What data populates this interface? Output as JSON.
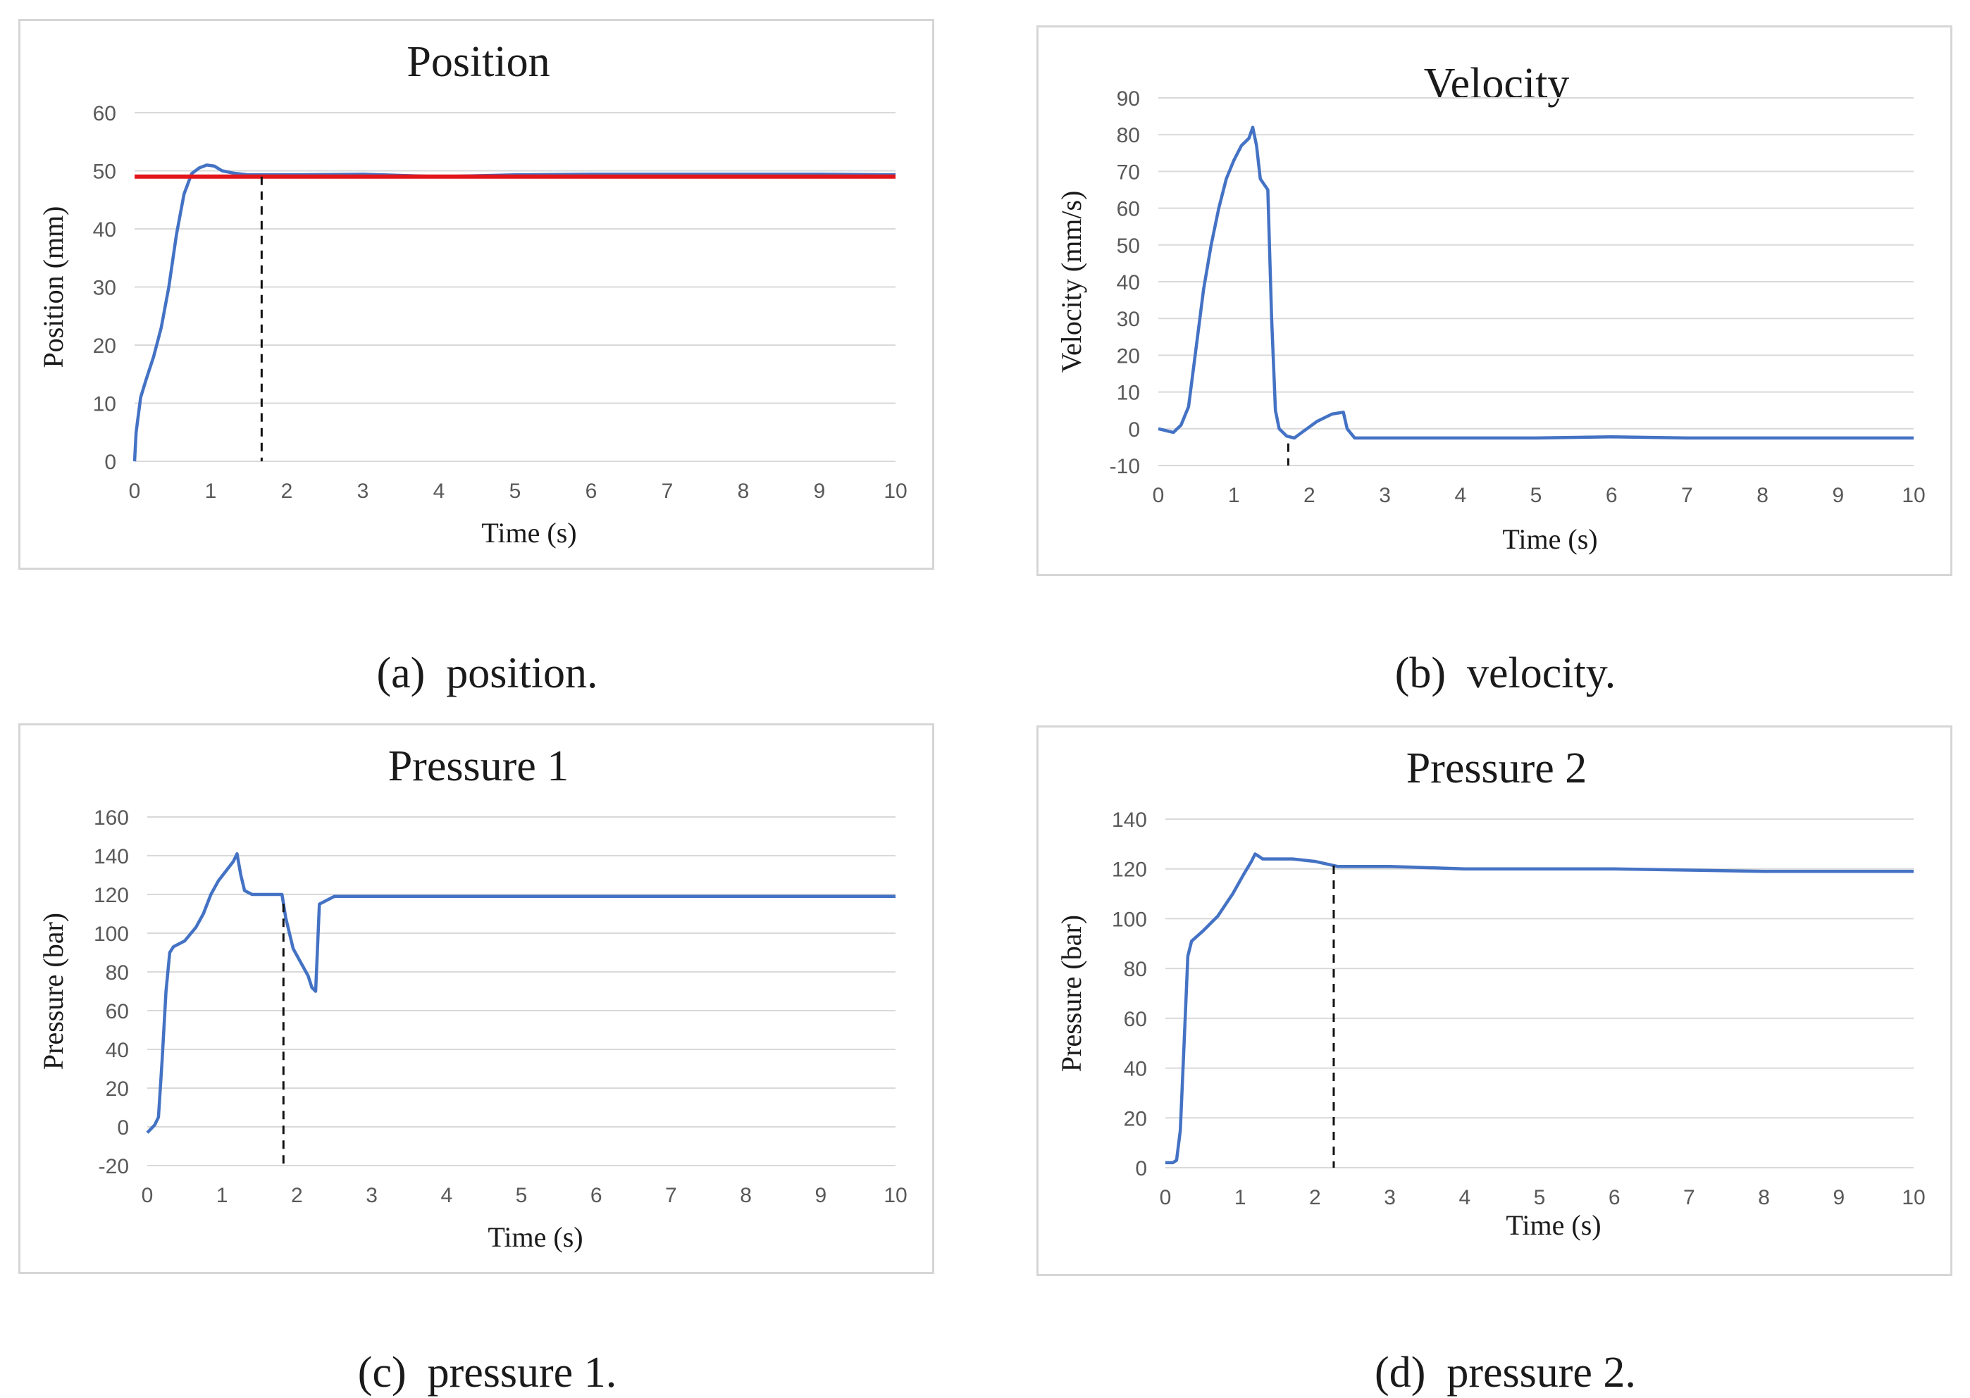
{
  "figure": {
    "captions": {
      "a": {
        "label": "(a)",
        "text": "position."
      },
      "b": {
        "label": "(b)",
        "text": "velocity."
      },
      "c": {
        "label": "(c)",
        "text": "pressure 1."
      },
      "d": {
        "label": "(d)",
        "text": "pressure 2."
      }
    }
  },
  "colors": {
    "series": "#4472c4",
    "reference": "#e3161b",
    "marker": "#111111",
    "grid": "#d9d9d9"
  },
  "chart_data": [
    {
      "id": "a",
      "type": "line",
      "title": "Position",
      "xlabel": "Time (s)",
      "ylabel": "Position (mm)",
      "xlim": [
        0,
        10
      ],
      "ylim": [
        0,
        60
      ],
      "xticks": [
        "0",
        "1",
        "2",
        "3",
        "4",
        "5",
        "6",
        "7",
        "8",
        "9",
        "10"
      ],
      "yticks": [
        "0",
        "10",
        "20",
        "30",
        "40",
        "50",
        "60"
      ],
      "reference_line": {
        "y": 49,
        "color": "#e3161b"
      },
      "marker_x": 1.67,
      "series": [
        {
          "name": "Position",
          "x": [
            0,
            0.02,
            0.08,
            0.15,
            0.25,
            0.35,
            0.45,
            0.55,
            0.65,
            0.75,
            0.85,
            0.95,
            1.05,
            1.15,
            1.3,
            1.5,
            2,
            3,
            4,
            5,
            6,
            7,
            8,
            9,
            10
          ],
          "y": [
            0,
            5,
            11,
            14,
            18,
            23,
            30,
            39,
            46,
            49.5,
            50.5,
            51,
            50.8,
            50,
            49.6,
            49.3,
            49.3,
            49.4,
            49,
            49.3,
            49.4,
            49.4,
            49.4,
            49.4,
            49.3
          ]
        }
      ]
    },
    {
      "id": "b",
      "type": "line",
      "title": "Velocity",
      "xlabel": "Time (s)",
      "ylabel": "Velocity (mm/s)",
      "xlim": [
        0,
        10
      ],
      "ylim": [
        -10,
        90
      ],
      "xticks": [
        "0",
        "1",
        "2",
        "3",
        "4",
        "5",
        "6",
        "7",
        "8",
        "9",
        "10"
      ],
      "yticks": [
        "-10",
        "0",
        "10",
        "20",
        "30",
        "40",
        "50",
        "60",
        "70",
        "80",
        "90"
      ],
      "marker_x": 1.72,
      "marker_ylim": [
        -10,
        -4
      ],
      "series": [
        {
          "name": "Velocity",
          "x": [
            0,
            0.1,
            0.2,
            0.3,
            0.4,
            0.5,
            0.6,
            0.7,
            0.8,
            0.9,
            1.0,
            1.1,
            1.2,
            1.25,
            1.3,
            1.35,
            1.45,
            1.5,
            1.55,
            1.6,
            1.7,
            1.8,
            1.9,
            2.1,
            2.3,
            2.45,
            2.5,
            2.6,
            3,
            4,
            5,
            6,
            7,
            8,
            9,
            10
          ],
          "y": [
            0,
            -0.5,
            -1,
            1,
            6,
            22,
            38,
            50,
            60,
            68,
            73,
            77,
            79,
            82,
            77,
            68,
            65,
            30,
            5,
            0,
            -2,
            -2.5,
            -1,
            2,
            4,
            4.5,
            0,
            -2.5,
            -2.5,
            -2.5,
            -2.5,
            -2.2,
            -2.5,
            -2.5,
            -2.5,
            -2.5
          ]
        }
      ]
    },
    {
      "id": "c",
      "type": "line",
      "title": "Pressure 1",
      "xlabel": "Time (s)",
      "ylabel": "Pressure (bar)",
      "xlim": [
        0,
        10
      ],
      "ylim": [
        -20,
        160
      ],
      "xticks": [
        "0",
        "1",
        "2",
        "3",
        "4",
        "5",
        "6",
        "7",
        "8",
        "9",
        "10"
      ],
      "yticks": [
        "-20",
        "0",
        "20",
        "40",
        "60",
        "80",
        "100",
        "120",
        "140",
        "160"
      ],
      "marker_x": 1.82,
      "series": [
        {
          "name": "Pressure 1",
          "x": [
            0,
            0.1,
            0.15,
            0.2,
            0.25,
            0.3,
            0.35,
            0.5,
            0.65,
            0.75,
            0.85,
            0.95,
            1.05,
            1.15,
            1.2,
            1.25,
            1.3,
            1.4,
            1.6,
            1.8,
            1.85,
            1.95,
            2.05,
            2.15,
            2.2,
            2.25,
            2.3,
            2.5,
            3,
            4,
            5,
            6,
            7,
            8,
            9,
            10
          ],
          "y": [
            -3,
            1,
            5,
            35,
            70,
            90,
            93,
            96,
            103,
            110,
            120,
            127,
            132,
            137,
            141,
            130,
            122,
            120,
            120,
            120,
            108,
            92,
            85,
            78,
            72,
            70,
            115,
            119,
            119,
            119,
            119,
            119,
            119,
            119,
            119,
            119
          ]
        }
      ]
    },
    {
      "id": "d",
      "type": "line",
      "title": "Pressure 2",
      "xlabel": "Time (s)",
      "ylabel": "Pressure (bar)",
      "xlim": [
        0,
        10
      ],
      "ylim": [
        0,
        140
      ],
      "xticks": [
        "0",
        "1",
        "2",
        "3",
        "4",
        "5",
        "6",
        "7",
        "8",
        "9",
        "10"
      ],
      "yticks": [
        "0",
        "20",
        "40",
        "60",
        "80",
        "100",
        "120",
        "140"
      ],
      "marker_x": 2.25,
      "series": [
        {
          "name": "Pressure 2",
          "x": [
            0,
            0.1,
            0.15,
            0.2,
            0.25,
            0.3,
            0.35,
            0.5,
            0.7,
            0.9,
            1.05,
            1.15,
            1.2,
            1.25,
            1.3,
            1.5,
            1.7,
            2,
            2.3,
            3,
            4,
            5,
            6,
            7,
            8,
            9,
            10
          ],
          "y": [
            2,
            2,
            3,
            15,
            50,
            85,
            91,
            95,
            101,
            110,
            118,
            123,
            126,
            125,
            124,
            124,
            124,
            123,
            121,
            121,
            120,
            120,
            120,
            119.5,
            119,
            119,
            119
          ]
        }
      ]
    }
  ]
}
